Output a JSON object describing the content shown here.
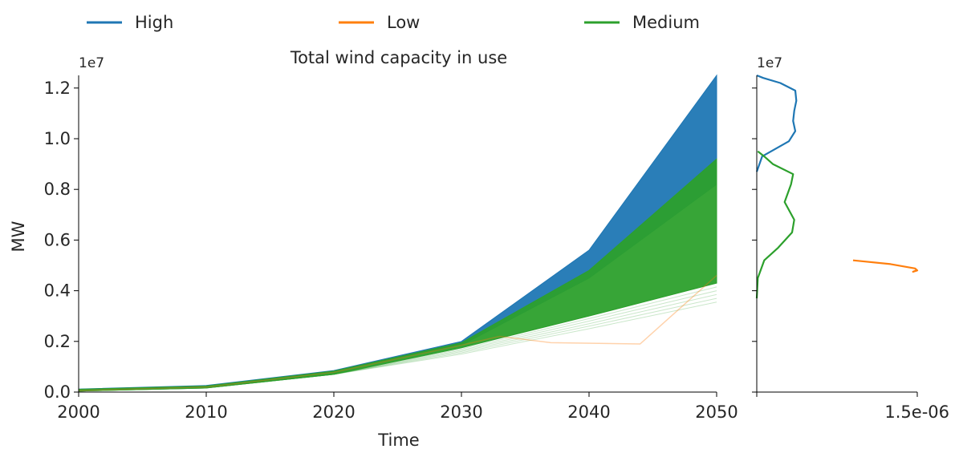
{
  "legend": {
    "placement": "top",
    "items": [
      {
        "label": "High",
        "color": "#1f77b4"
      },
      {
        "label": "Low",
        "color": "#ff7f0e"
      },
      {
        "label": "Medium",
        "color": "#2ca02c"
      }
    ]
  },
  "chart_data": [
    {
      "type": "line",
      "title": "Total wind capacity in use",
      "xlabel": "Time",
      "ylabel": "MW",
      "y_offset_label": "1e7",
      "xlim": [
        2000,
        2050
      ],
      "ylim": [
        0,
        12500000
      ],
      "x_ticks": [
        2000,
        2010,
        2020,
        2030,
        2040,
        2050
      ],
      "y_ticks": [
        0,
        2000000,
        4000000,
        6000000,
        8000000,
        10000000,
        12000000
      ],
      "y_tick_labels": [
        "0.0",
        "0.2",
        "0.4",
        "0.6",
        "0.8",
        "1.0",
        "1.2"
      ],
      "grid": false,
      "series": [
        {
          "name": "High",
          "color": "#1f77b4",
          "x": [
            2000,
            2010,
            2020,
            2030,
            2040,
            2050
          ],
          "band_low": [
            50000,
            180000,
            750000,
            1850000,
            4500000,
            8200000
          ],
          "band_high": [
            120000,
            260000,
            850000,
            2000000,
            5600000,
            12500000
          ]
        },
        {
          "name": "Medium",
          "color": "#2ca02c",
          "x": [
            2000,
            2010,
            2020,
            2030,
            2040,
            2050
          ],
          "band_low": [
            40000,
            160000,
            700000,
            1750000,
            3000000,
            4300000
          ],
          "band_high": [
            110000,
            240000,
            830000,
            1950000,
            4800000,
            9200000
          ]
        },
        {
          "name": "Low",
          "color": "#ff7f0e",
          "x": [
            2000,
            2010,
            2020,
            2030,
            2033,
            2037,
            2044,
            2050
          ],
          "values": [
            60000,
            200000,
            780000,
            1850000,
            2200000,
            1950000,
            1900000,
            4600000
          ]
        }
      ]
    },
    {
      "type": "line",
      "description": "marginal density (KDE) of final capacity",
      "y_offset_label": "1e7",
      "xlim": [
        0,
        1.5e-06
      ],
      "x_tick_labels": [
        "1.5e-06"
      ],
      "ylim": [
        0,
        12500000
      ],
      "grid": false,
      "series": [
        {
          "name": "High",
          "color": "#1f77b4",
          "density": [
            0,
            5e-08,
            3e-07,
            3.6e-07,
            3.4e-07,
            3.5e-07,
            3.7e-07,
            3.6e-07,
            2.2e-07,
            6e-08,
            0
          ],
          "y": [
            8700000,
            9300000,
            9900000,
            10300000,
            10700000,
            11100000,
            11500000,
            11900000,
            12200000,
            12400000,
            12500000
          ]
        },
        {
          "name": "Medium",
          "color": "#2ca02c",
          "density": [
            0,
            1e-08,
            7e-08,
            2e-07,
            3.3e-07,
            3.5e-07,
            2.6e-07,
            3.2e-07,
            3.4e-07,
            1.5e-07,
            7e-08,
            1e-08
          ],
          "y": [
            3700000,
            4500000,
            5200000,
            5700000,
            6300000,
            6800000,
            7500000,
            8200000,
            8600000,
            9000000,
            9300000,
            9500000
          ]
        },
        {
          "name": "Low",
          "color": "#ff7f0e",
          "density": [
            9e-07,
            1.25e-06,
            1.48e-06,
            1.5e-06,
            1.46e-06,
            1.5e-06
          ],
          "y": [
            5200000,
            5050000,
            4880000,
            4800000,
            4750000,
            4820000
          ]
        }
      ]
    }
  ]
}
